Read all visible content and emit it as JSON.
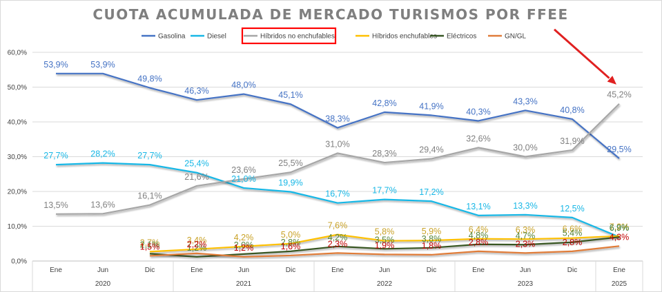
{
  "chart_data": {
    "type": "line",
    "title": "CUOTA ACUMULADA DE MERCADO TURISMOS POR FFEE",
    "xlabel": "",
    "ylabel": "",
    "ylim": [
      0,
      60
    ],
    "grid": true,
    "legend_position": "top",
    "categories": [
      "Ene",
      "Jun",
      "Dic",
      "Ene",
      "Jun",
      "Dic",
      "Ene",
      "Jun",
      "Dic",
      "Ene",
      "Jun",
      "Dic",
      "Ene"
    ],
    "year_groups": [
      {
        "label": "2020",
        "start": 0,
        "end": 2
      },
      {
        "label": "2021",
        "start": 3,
        "end": 5
      },
      {
        "label": "2022",
        "start": 6,
        "end": 8
      },
      {
        "label": "2023",
        "start": 9,
        "end": 11
      },
      {
        "label": "2025",
        "start": 12,
        "end": 12
      }
    ],
    "y_ticks": [
      "0,0%",
      "10,0%",
      "20,0%",
      "30,0%",
      "40,0%",
      "50,0%",
      "60,0%"
    ],
    "series": [
      {
        "name": "Gasolina",
        "color": "#4472c4",
        "values": [
          53.9,
          53.9,
          49.8,
          46.3,
          48.0,
          45.1,
          38.3,
          42.8,
          41.9,
          40.3,
          43.3,
          40.8,
          29.5
        ],
        "labels": [
          "53,9%",
          "53,9%",
          "49,8%",
          "46,3%",
          "48,0%",
          "45,1%",
          "38,3%",
          "42,8%",
          "41,9%",
          "40,3%",
          "43,3%",
          "40,8%",
          "29,5%"
        ]
      },
      {
        "name": "Diesel",
        "color": "#17b7e6",
        "values": [
          27.7,
          28.2,
          27.7,
          25.4,
          21.0,
          19.9,
          16.7,
          17.7,
          17.2,
          13.1,
          13.3,
          12.5,
          6.9
        ],
        "labels": [
          "27,7%",
          "28,2%",
          "27,7%",
          "25,4%",
          "21,0%",
          "19,9%",
          "16,7%",
          "17,7%",
          "17,2%",
          "13,1%",
          "13,3%",
          "12,5%",
          "6,9%"
        ]
      },
      {
        "name": "Híbridos no enchufables",
        "color": "#a6a6a6",
        "values": [
          13.5,
          13.6,
          16.1,
          21.6,
          23.6,
          25.5,
          31.0,
          28.3,
          29.4,
          32.6,
          30.0,
          31.9,
          45.2
        ],
        "labels": [
          "13,5%",
          "13,6%",
          "16,1%",
          "21,6%",
          "23,6%",
          "25,5%",
          "31,0%",
          "28,3%",
          "29,4%",
          "32,6%",
          "30,0%",
          "31,9%",
          "45,2%"
        ]
      },
      {
        "name": "Híbridos enchufables",
        "color": "#ffc000",
        "values": [
          null,
          null,
          2.7,
          3.4,
          4.2,
          5.0,
          7.6,
          5.8,
          5.9,
          6.4,
          6.3,
          6.6,
          7.2
        ],
        "labels": [
          "",
          "",
          "2,7%",
          "3,4%",
          "4,2%",
          "5,0%",
          "7,6%",
          "5,8%",
          "5,9%",
          "6,4%",
          "6,3%",
          "6,6%",
          "7,2%"
        ]
      },
      {
        "name": "Eléctricos",
        "color": "#375623",
        "values": [
          null,
          null,
          2.1,
          1.2,
          2.0,
          2.8,
          4.2,
          3.5,
          3.8,
          4.8,
          4.7,
          5.4,
          6.9
        ],
        "labels": [
          "",
          "",
          "2,1%",
          "1,2%",
          "2,0%",
          "2,8%",
          "4,2%",
          "3,5%",
          "3,8%",
          "4,8%",
          "4,7%",
          "5,4%",
          "6,9%"
        ]
      },
      {
        "name": "GN/GL",
        "color": "#e07b39",
        "values": [
          null,
          null,
          1.5,
          2.2,
          1.2,
          1.6,
          2.3,
          1.9,
          1.8,
          2.8,
          2.3,
          2.8,
          4.3
        ],
        "labels": [
          "",
          "",
          "1,5%",
          "2,2%",
          "1,2%",
          "1,6%",
          "2,3%",
          "1,9%",
          "1,8%",
          "2,8%",
          "2,3%",
          "2,8%",
          "4,3%"
        ]
      }
    ],
    "label_colors": {
      "Gasolina": "#4472c4",
      "Diesel": "#17b7e6",
      "Híbridos no enchufables": "#808080",
      "Híbridos enchufables": "#c9a227",
      "Eléctricos": "#548235",
      "GN/GL": "#c00000"
    },
    "annotations": {
      "highlight_box_color": "#ff0000",
      "highlighted_series": "Híbridos no enchufables",
      "arrow_color": "#e02020",
      "arrow_target_series": "Híbridos no enchufables"
    }
  }
}
